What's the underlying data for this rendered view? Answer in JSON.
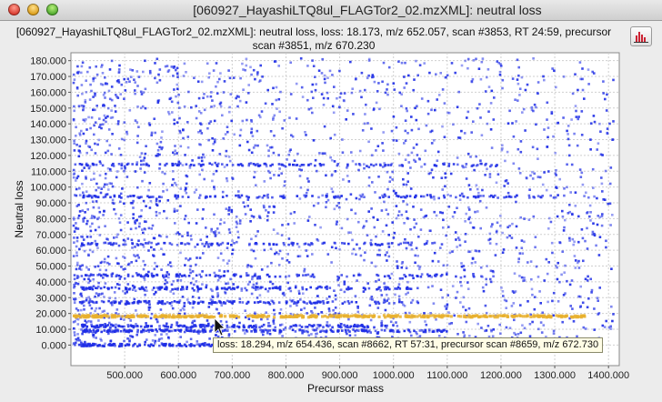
{
  "window": {
    "title": "[060927_HayashiLTQ8ul_FLAGTor2_02.mzXML]: neutral loss"
  },
  "header": {
    "line1": "[060927_HayashiLTQ8ul_FLAGTor2_02.mzXML]: neutral loss, loss: 18.173, m/z 652.057, scan #3853, RT 24:59, precursor",
    "line2": "scan #3851, m/z 670.230"
  },
  "toolbar": {
    "icon": "histogram-icon"
  },
  "tooltip": {
    "text": "loss: 18.294, m/z 654.436, scan #8662, RT 57:31, precursor scan #8659, m/z 672.730"
  },
  "chart_data": {
    "type": "scatter",
    "xlabel": "Precursor mass",
    "ylabel": "Neutral loss",
    "xlim": [
      400,
      1420
    ],
    "ylim": [
      -13,
      185
    ],
    "xticks": [
      500,
      600,
      700,
      800,
      900,
      1000,
      1100,
      1200,
      1300,
      1400
    ],
    "xtick_labels": [
      "500.000",
      "600.000",
      "700.000",
      "800.000",
      "900.000",
      "1000.000",
      "1100.000",
      "1200.000",
      "1300.000",
      "1400.000"
    ],
    "yticks": [
      0,
      10,
      20,
      30,
      40,
      50,
      60,
      70,
      80,
      90,
      100,
      110,
      120,
      130,
      140,
      150,
      160,
      170,
      180
    ],
    "ytick_labels": [
      "0.000",
      "10.000",
      "20.000",
      "30.000",
      "40.000",
      "50.000",
      "60.000",
      "70.000",
      "80.000",
      "90.000",
      "100.000",
      "110.000",
      "120.000",
      "130.000",
      "140.000",
      "150.000",
      "160.000",
      "170.000",
      "180.000"
    ],
    "grid": true,
    "legend": "none",
    "colors": {
      "points": "#1f2ee6",
      "highlight": "#e8b02e",
      "grid": "#cfcfcf"
    },
    "series": [
      {
        "bands": [
          {
            "loss": 0,
            "x_range": [
              420,
              1010
            ],
            "density": 0.9
          },
          {
            "loss": 9,
            "x_range": [
              420,
              1100
            ],
            "density": 0.8
          },
          {
            "loss": 12,
            "x_range": [
              420,
              1000
            ],
            "density": 0.7
          },
          {
            "loss": 27,
            "x_range": [
              420,
              1050
            ],
            "density": 0.6
          },
          {
            "loss": 36,
            "x_range": [
              420,
              1050
            ],
            "density": 0.55
          },
          {
            "loss": 44,
            "x_range": [
              420,
              1100
            ],
            "density": 0.45
          },
          {
            "loss": 64,
            "x_range": [
              420,
              1100
            ],
            "density": 0.4
          },
          {
            "loss": 94,
            "x_range": [
              420,
              1320
            ],
            "density": 0.55
          },
          {
            "loss": 114,
            "x_range": [
              420,
              1200
            ],
            "density": 0.5
          }
        ],
        "scatter_x_range": [
          405,
          1410
        ],
        "scatter_y_range": [
          0,
          182
        ]
      },
      {
        "name": "",
        "highlight_band": {
          "loss": 18.2,
          "x_range": [
            405,
            1360
          ]
        }
      }
    ]
  }
}
